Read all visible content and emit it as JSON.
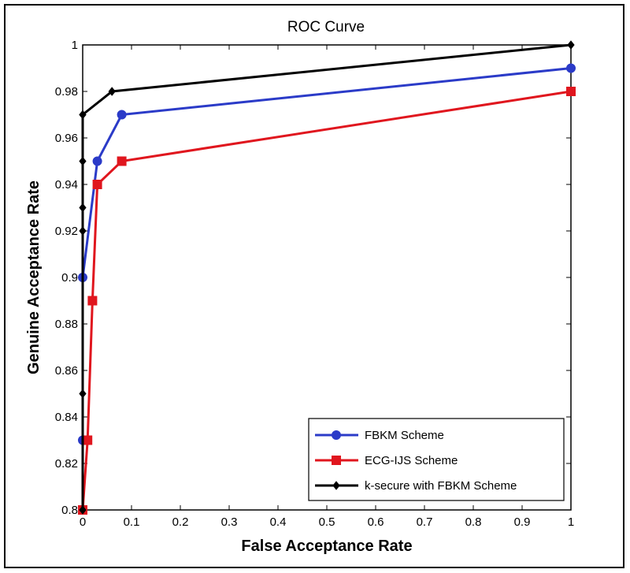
{
  "chart_data": {
    "type": "line",
    "title": "ROC Curve",
    "xlabel": "False Acceptance Rate",
    "ylabel": "Genuine Acceptance Rate",
    "xlim": [
      0,
      1
    ],
    "ylim": [
      0.8,
      1
    ],
    "xticks": [
      0,
      0.1,
      0.2,
      0.3,
      0.4,
      0.5,
      0.6,
      0.7,
      0.8,
      0.9,
      1
    ],
    "xtick_labels": [
      "0",
      "0.1",
      "0.2",
      "0.3",
      "0.4",
      "0.5",
      "0.6",
      "0.7",
      "0.8",
      "0.9",
      "1"
    ],
    "yticks": [
      0.8,
      0.82,
      0.84,
      0.86,
      0.88,
      0.9,
      0.92,
      0.94,
      0.96,
      0.98,
      1
    ],
    "ytick_labels": [
      "0.8",
      "0.82",
      "0.84",
      "0.86",
      "0.88",
      "0.9",
      "0.92",
      "0.94",
      "0.96",
      "0.98",
      "1"
    ],
    "grid": false,
    "legend_position": "bottom-right",
    "series": [
      {
        "name": "FBKM Scheme",
        "color": "#2b3bc8",
        "marker": "circle",
        "x": [
          0,
          0,
          0,
          0.03,
          0.08,
          1
        ],
        "y": [
          0.8,
          0.83,
          0.9,
          0.95,
          0.97,
          0.99
        ]
      },
      {
        "name": "ECG-IJS Scheme",
        "color": "#e0161e",
        "marker": "square",
        "x": [
          0,
          0.01,
          0.02,
          0.03,
          0.08,
          1
        ],
        "y": [
          0.8,
          0.83,
          0.89,
          0.94,
          0.95,
          0.98
        ]
      },
      {
        "name": "k-secure with FBKM Scheme",
        "color": "#000000",
        "marker": "diamond",
        "x": [
          0,
          0,
          0,
          0,
          0,
          0,
          0,
          0.06,
          1
        ],
        "y": [
          0.8,
          0.85,
          0.92,
          0.93,
          0.95,
          0.97,
          0.97,
          0.98,
          1
        ]
      }
    ]
  }
}
